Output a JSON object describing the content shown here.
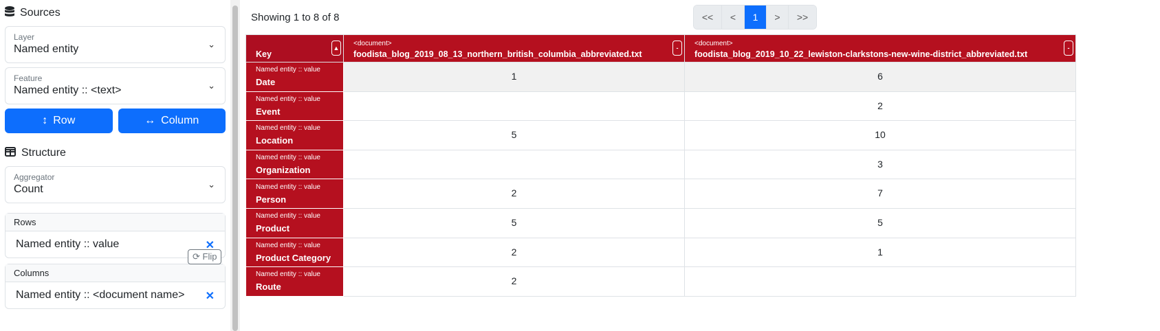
{
  "sidebar": {
    "sources_title": "Sources",
    "layer": {
      "label": "Layer",
      "value": "Named entity"
    },
    "feature": {
      "label": "Feature",
      "value": "Named entity :: <text>"
    },
    "row_button": "Row",
    "column_button": "Column",
    "structure_title": "Structure",
    "aggregator": {
      "label": "Aggregator",
      "value": "Count"
    },
    "rows": {
      "label": "Rows",
      "value": "Named entity :: value"
    },
    "columns": {
      "label": "Columns",
      "value": "Named entity :: <document name>"
    },
    "flip_label": "Flip"
  },
  "main": {
    "showing": "Showing 1 to 8 of 8",
    "pagination": [
      "<<",
      "<",
      "1",
      ">",
      ">>"
    ],
    "accent": "#0d6efd",
    "header_color": "#b5101f",
    "table": {
      "key_header": "Key",
      "columns": [
        {
          "type": "<document>",
          "name": "foodista_blog_2019_08_13_northern_british_columbia_abbreviated.txt"
        },
        {
          "type": "<document>",
          "name": "foodista_blog_2019_10_22_lewiston-clarkstons-new-wine-district_abbreviated.txt"
        }
      ],
      "rows": [
        {
          "feature": "Named entity :: value",
          "key": "Date",
          "values": [
            "1",
            "6"
          ]
        },
        {
          "feature": "Named entity :: value",
          "key": "Event",
          "values": [
            "",
            "2"
          ]
        },
        {
          "feature": "Named entity :: value",
          "key": "Location",
          "values": [
            "5",
            "10"
          ]
        },
        {
          "feature": "Named entity :: value",
          "key": "Organization",
          "values": [
            "",
            "3"
          ]
        },
        {
          "feature": "Named entity :: value",
          "key": "Person",
          "values": [
            "2",
            "7"
          ]
        },
        {
          "feature": "Named entity :: value",
          "key": "Product",
          "values": [
            "5",
            "5"
          ]
        },
        {
          "feature": "Named entity :: value",
          "key": "Product Category",
          "values": [
            "2",
            "1"
          ]
        },
        {
          "feature": "Named entity :: value",
          "key": "Route",
          "values": [
            "2",
            ""
          ]
        }
      ]
    }
  }
}
